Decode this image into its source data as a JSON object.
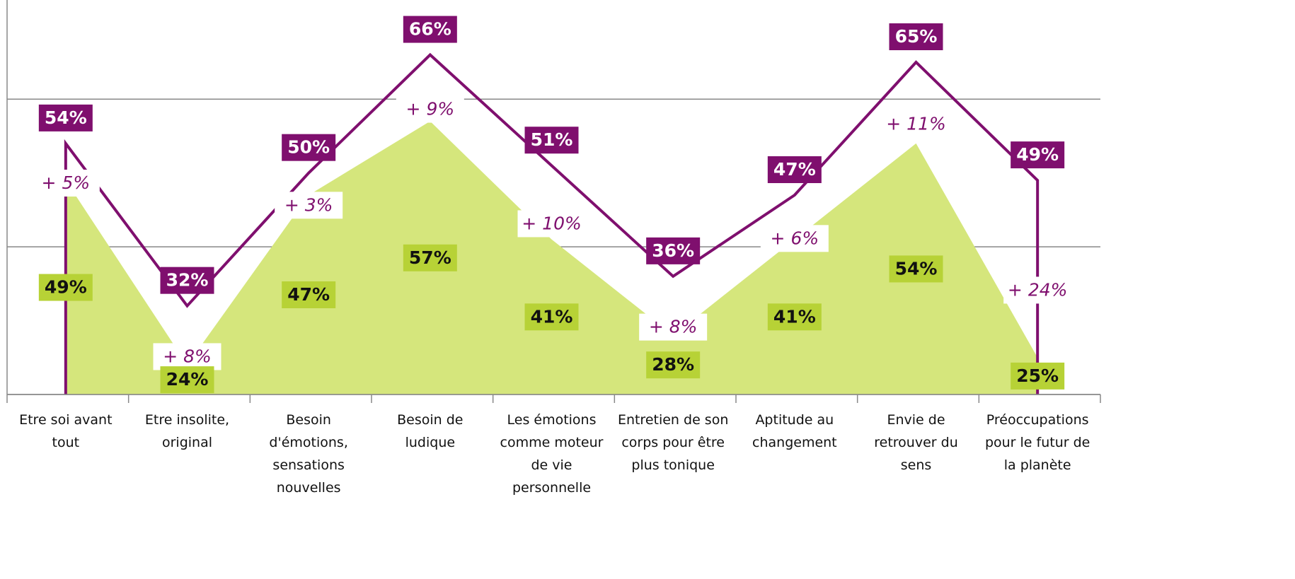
{
  "chart_data": {
    "type": "area_line",
    "categories": [
      "Etre soi avant tout",
      "Etre insolite, original",
      "Besoin d'émotions, sensations nouvelles",
      "Besoin de ludique",
      "Les émotions comme moteur de vie personnelle",
      "Entretien de son corps pour être plus tonique",
      "Aptitude au changement",
      "Envie de retrouver du sens",
      "Préoccupations pour le futur de la planète"
    ],
    "series": [
      {
        "color": "#d5e67c",
        "label_color": "#b7d236",
        "values": [
          49,
          24,
          47,
          57,
          41,
          28,
          41,
          54,
          25
        ],
        "value_labels": [
          "49%",
          "24%",
          "47%",
          "57%",
          "41%",
          "28%",
          "41%",
          "54%",
          "25%"
        ]
      },
      {
        "color": "#7f0f6e",
        "values": [
          54,
          32,
          50,
          66,
          51,
          36,
          47,
          65,
          49
        ],
        "value_labels": [
          "54%",
          "32%",
          "50%",
          "66%",
          "51%",
          "36%",
          "47%",
          "65%",
          "49%"
        ]
      }
    ],
    "diff_labels": [
      "+ 5%",
      "+ 8%",
      "+ 3%",
      "+ 9%",
      "+ 10%",
      "+ 8%",
      "+ 6%",
      "+ 11%",
      "+ 24%"
    ],
    "ylim": [
      20,
      74
    ],
    "yticks": [
      20,
      40,
      60
    ],
    "grid": true
  }
}
